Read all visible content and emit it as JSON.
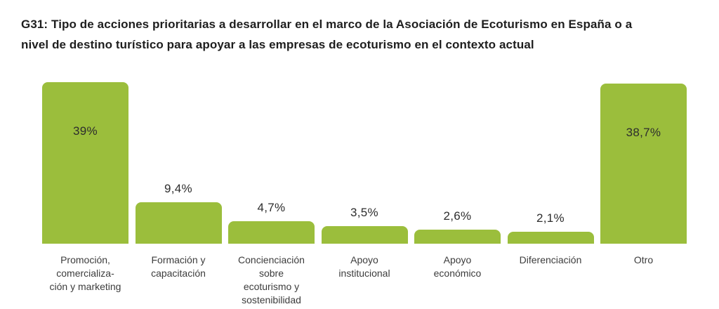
{
  "title_display": "G31: Tipo de acciones prioritarias a desarrollar en el marco de la Asociación de Ecoturismo en España o a\nnivel de destino turístico para apoyar a las empresas de ecoturismo en el contexto actual",
  "colors": {
    "bar": "#9bbe3c",
    "title_text": "#1e1e1e",
    "value_text": "#2d2d2d",
    "category_text": "#3c3c3c",
    "background": "#ffffff"
  },
  "chart_data": {
    "type": "bar",
    "title": "G31: Tipo de acciones prioritarias a desarrollar en el marco de la Asociación de Ecoturismo en España o a nivel de destino turístico para apoyar a las empresas de ecoturismo en el contexto actual",
    "categories": [
      "Promoción, comercialización y marketing",
      "Formación y capacitación",
      "Concienciación sobre ecoturismo y sostenibilidad",
      "Apoyo institucional",
      "Apoyo económico",
      "Diferenciación",
      "Otro"
    ],
    "category_label_lines": [
      [
        "Promoción,",
        "comercializa-",
        "ción y marketing"
      ],
      [
        "Formación y",
        "capacitación"
      ],
      [
        "Concienciación",
        "sobre",
        "ecoturismo y",
        "sostenibilidad"
      ],
      [
        "Apoyo",
        "institucional"
      ],
      [
        "Apoyo",
        "económico"
      ],
      [
        "Diferenciación"
      ],
      [
        "Otro"
      ]
    ],
    "values": [
      39,
      9.4,
      4.7,
      3.5,
      2.6,
      2.1,
      38.7
    ],
    "value_labels": [
      "39%",
      "9,4%",
      "4,7%",
      "3,5%",
      "2,6%",
      "2,1%",
      "38,7%"
    ],
    "value_label_placement": [
      "inside",
      "above",
      "above",
      "above",
      "above",
      "above",
      "inside"
    ],
    "unit": "%",
    "ylim": [
      0,
      40
    ],
    "grid": false,
    "legend": false,
    "axis_lines": false,
    "bar_color": "#9bbe3c",
    "xlabel": "",
    "ylabel": ""
  }
}
